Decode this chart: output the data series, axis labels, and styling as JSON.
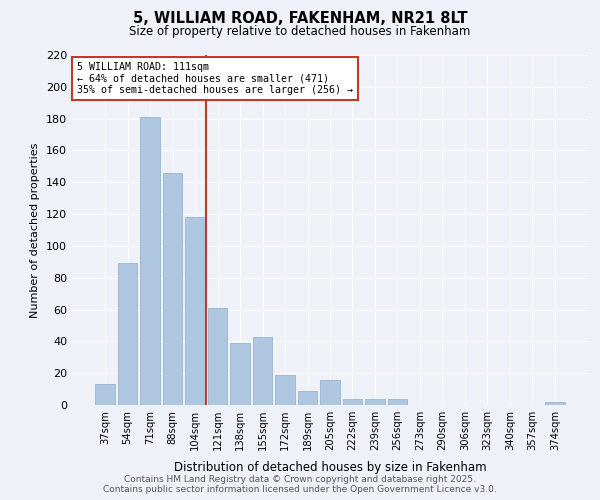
{
  "title": "5, WILLIAM ROAD, FAKENHAM, NR21 8LT",
  "subtitle": "Size of property relative to detached houses in Fakenham",
  "xlabel": "Distribution of detached houses by size in Fakenham",
  "ylabel": "Number of detached properties",
  "categories": [
    "37sqm",
    "54sqm",
    "71sqm",
    "88sqm",
    "104sqm",
    "121sqm",
    "138sqm",
    "155sqm",
    "172sqm",
    "189sqm",
    "205sqm",
    "222sqm",
    "239sqm",
    "256sqm",
    "273sqm",
    "290sqm",
    "306sqm",
    "323sqm",
    "340sqm",
    "357sqm",
    "374sqm"
  ],
  "values": [
    13,
    89,
    181,
    146,
    118,
    61,
    39,
    43,
    19,
    9,
    16,
    4,
    4,
    4,
    0,
    0,
    0,
    0,
    0,
    0,
    2
  ],
  "bar_color": "#aec6df",
  "bar_edgecolor": "#8bafc8",
  "property_label": "5 WILLIAM ROAD: 111sqm",
  "annotation_line1": "← 64% of detached houses are smaller (471)",
  "annotation_line2": "35% of semi-detached houses are larger (256) →",
  "vline_color": "#c0392b",
  "vline_x": 4.5,
  "ylim": [
    0,
    220
  ],
  "yticks": [
    0,
    20,
    40,
    60,
    80,
    100,
    120,
    140,
    160,
    180,
    200,
    220
  ],
  "background_color": "#eef2f8",
  "grid_color": "#ffffff",
  "footnote_line1": "Contains HM Land Registry data © Crown copyright and database right 2025.",
  "footnote_line2": "Contains public sector information licensed under the Open Government Licence v3.0."
}
